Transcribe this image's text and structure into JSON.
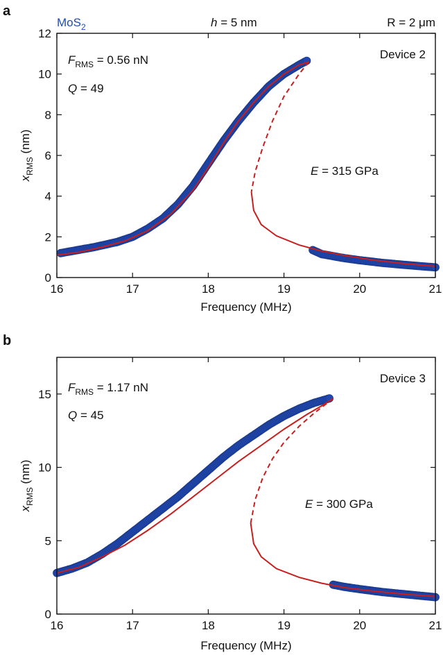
{
  "header": {
    "material": "MoS",
    "material_sub": "2",
    "thickness_var": "h",
    "thickness_rest": " = 5 nm",
    "radius": "R = 2 μm"
  },
  "colors": {
    "data": "#2048b0",
    "data_edge": "#1a3a8e",
    "fit": "#c81e1e",
    "material_label": "#1f4bb5"
  },
  "chart_data": [
    {
      "type": "scatter",
      "panel": "a",
      "device": "Device 2",
      "force_var": "F",
      "force_sub": "RMS",
      "force_rest": " = 0.56 nN",
      "q_var": "Q",
      "q_rest": " = 49",
      "e_var": "E",
      "e_rest": " = 315 GPa",
      "xlabel": "Frequency (MHz)",
      "ylabel_var": "x",
      "ylabel_sub": "RMS",
      "ylabel_rest": " (nm)",
      "xlim": [
        16,
        21
      ],
      "ylim": [
        0,
        12
      ],
      "xticks": [
        16,
        17,
        18,
        19,
        20,
        21
      ],
      "yticks": [
        0,
        2,
        4,
        6,
        8,
        10,
        12
      ],
      "series": [
        {
          "role": "measured",
          "points": [
            [
              16.05,
              1.2
            ],
            [
              16.2,
              1.3
            ],
            [
              16.5,
              1.5
            ],
            [
              16.8,
              1.75
            ],
            [
              17.0,
              2.0
            ],
            [
              17.2,
              2.4
            ],
            [
              17.4,
              2.9
            ],
            [
              17.6,
              3.6
            ],
            [
              17.8,
              4.5
            ],
            [
              18.0,
              5.6
            ],
            [
              18.2,
              6.7
            ],
            [
              18.4,
              7.7
            ],
            [
              18.6,
              8.6
            ],
            [
              18.8,
              9.4
            ],
            [
              19.0,
              10.0
            ],
            [
              19.2,
              10.45
            ],
            [
              19.3,
              10.65
            ],
            [
              19.38,
              1.35
            ],
            [
              19.5,
              1.15
            ],
            [
              19.8,
              0.95
            ],
            [
              20.0,
              0.85
            ],
            [
              20.3,
              0.72
            ],
            [
              20.6,
              0.62
            ],
            [
              20.8,
              0.56
            ],
            [
              21.0,
              0.5
            ]
          ]
        },
        {
          "role": "fit-stable-upper",
          "points": [
            [
              16.0,
              1.1
            ],
            [
              16.3,
              1.25
            ],
            [
              16.6,
              1.5
            ],
            [
              16.9,
              1.8
            ],
            [
              17.2,
              2.3
            ],
            [
              17.5,
              3.1
            ],
            [
              17.8,
              4.3
            ],
            [
              18.0,
              5.4
            ],
            [
              18.2,
              6.6
            ],
            [
              18.4,
              7.7
            ],
            [
              18.6,
              8.6
            ],
            [
              18.8,
              9.4
            ],
            [
              19.0,
              10.0
            ],
            [
              19.2,
              10.45
            ],
            [
              19.33,
              10.6
            ]
          ]
        },
        {
          "role": "fit-unstable",
          "points": [
            [
              19.33,
              10.6
            ],
            [
              19.2,
              10.0
            ],
            [
              19.0,
              8.9
            ],
            [
              18.85,
              7.7
            ],
            [
              18.72,
              6.4
            ],
            [
              18.62,
              5.2
            ],
            [
              18.57,
              4.2
            ]
          ]
        },
        {
          "role": "fit-stable-lower",
          "points": [
            [
              18.57,
              4.2
            ],
            [
              18.6,
              3.3
            ],
            [
              18.7,
              2.6
            ],
            [
              18.9,
              2.05
            ],
            [
              19.2,
              1.6
            ],
            [
              19.5,
              1.3
            ],
            [
              19.8,
              1.08
            ],
            [
              20.2,
              0.85
            ],
            [
              20.6,
              0.68
            ],
            [
              21.0,
              0.55
            ]
          ]
        }
      ]
    },
    {
      "type": "scatter",
      "panel": "b",
      "device": "Device 3",
      "force_var": "F",
      "force_sub": "RMS",
      "force_rest": " = 1.17 nN",
      "q_var": "Q",
      "q_rest": " = 45",
      "e_var": "E",
      "e_rest": " = 300 GPa",
      "xlabel": "Frequency (MHz)",
      "ylabel_var": "x",
      "ylabel_sub": "RMS",
      "ylabel_rest": " (nm)",
      "xlim": [
        16,
        21
      ],
      "ylim": [
        0,
        17.5
      ],
      "xticks": [
        16,
        17,
        18,
        19,
        20,
        21
      ],
      "yticks": [
        0,
        5,
        10,
        15
      ],
      "series": [
        {
          "role": "measured",
          "points": [
            [
              16.0,
              2.8
            ],
            [
              16.2,
              3.1
            ],
            [
              16.4,
              3.5
            ],
            [
              16.6,
              4.1
            ],
            [
              16.8,
              4.8
            ],
            [
              17.0,
              5.6
            ],
            [
              17.2,
              6.4
            ],
            [
              17.4,
              7.2
            ],
            [
              17.6,
              8.0
            ],
            [
              17.8,
              8.9
            ],
            [
              18.0,
              9.8
            ],
            [
              18.2,
              10.7
            ],
            [
              18.4,
              11.5
            ],
            [
              18.6,
              12.2
            ],
            [
              18.8,
              12.9
            ],
            [
              19.0,
              13.5
            ],
            [
              19.2,
              14.0
            ],
            [
              19.4,
              14.4
            ],
            [
              19.6,
              14.7
            ],
            [
              19.65,
              2.0
            ],
            [
              19.8,
              1.85
            ],
            [
              20.0,
              1.7
            ],
            [
              20.3,
              1.5
            ],
            [
              20.6,
              1.35
            ],
            [
              20.8,
              1.25
            ],
            [
              21.0,
              1.15
            ]
          ]
        },
        {
          "role": "fit-stable-upper",
          "points": [
            [
              16.0,
              2.8
            ],
            [
              16.3,
              3.2
            ],
            [
              16.6,
              3.9
            ],
            [
              16.9,
              4.7
            ],
            [
              17.2,
              5.7
            ],
            [
              17.5,
              6.8
            ],
            [
              17.8,
              8.0
            ],
            [
              18.1,
              9.2
            ],
            [
              18.4,
              10.4
            ],
            [
              18.7,
              11.5
            ],
            [
              19.0,
              12.6
            ],
            [
              19.3,
              13.6
            ],
            [
              19.5,
              14.2
            ],
            [
              19.65,
              14.7
            ]
          ]
        },
        {
          "role": "fit-unstable",
          "points": [
            [
              19.65,
              14.7
            ],
            [
              19.4,
              13.7
            ],
            [
              19.2,
              12.8
            ],
            [
              19.0,
              11.7
            ],
            [
              18.85,
              10.6
            ],
            [
              18.72,
              9.3
            ],
            [
              18.62,
              7.8
            ],
            [
              18.56,
              6.2
            ]
          ]
        },
        {
          "role": "fit-stable-lower",
          "points": [
            [
              18.56,
              6.2
            ],
            [
              18.6,
              4.8
            ],
            [
              18.7,
              3.9
            ],
            [
              18.9,
              3.1
            ],
            [
              19.2,
              2.5
            ],
            [
              19.5,
              2.1
            ],
            [
              19.8,
              1.8
            ],
            [
              20.2,
              1.55
            ],
            [
              20.6,
              1.35
            ],
            [
              21.0,
              1.2
            ]
          ]
        }
      ]
    }
  ]
}
